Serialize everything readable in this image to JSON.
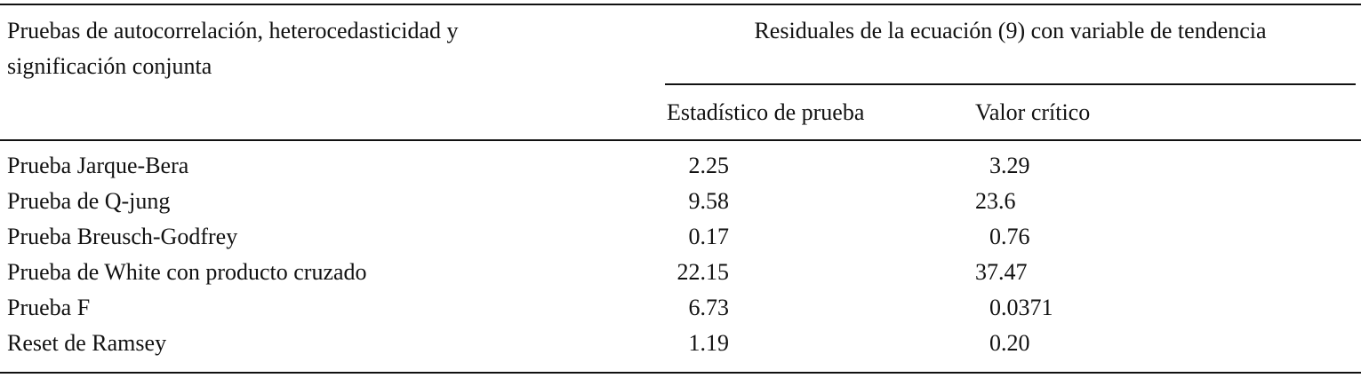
{
  "table": {
    "row_header": [
      "Pruebas de autocorrelación, heterocedasticidad y",
      "significación conjunta"
    ],
    "group_header": "Residuales de la ecuación (9) con variable de tendencia",
    "columns": [
      "Estadístico de prueba",
      "Valor crítico"
    ],
    "rows": [
      [
        "Prueba Jarque-Bera",
        "2.25",
        "3.29"
      ],
      [
        "Prueba de Q-jung",
        "9.58",
        "23.6"
      ],
      [
        "Prueba Breusch-Godfrey",
        "0.17",
        "0.76"
      ],
      [
        "Prueba de White con producto cruzado",
        "22.15",
        "37.47"
      ],
      [
        "Prueba F",
        "6.73",
        "0.0371"
      ],
      [
        "Reset de Ramsey",
        "1.19",
        "0.20"
      ]
    ]
  }
}
